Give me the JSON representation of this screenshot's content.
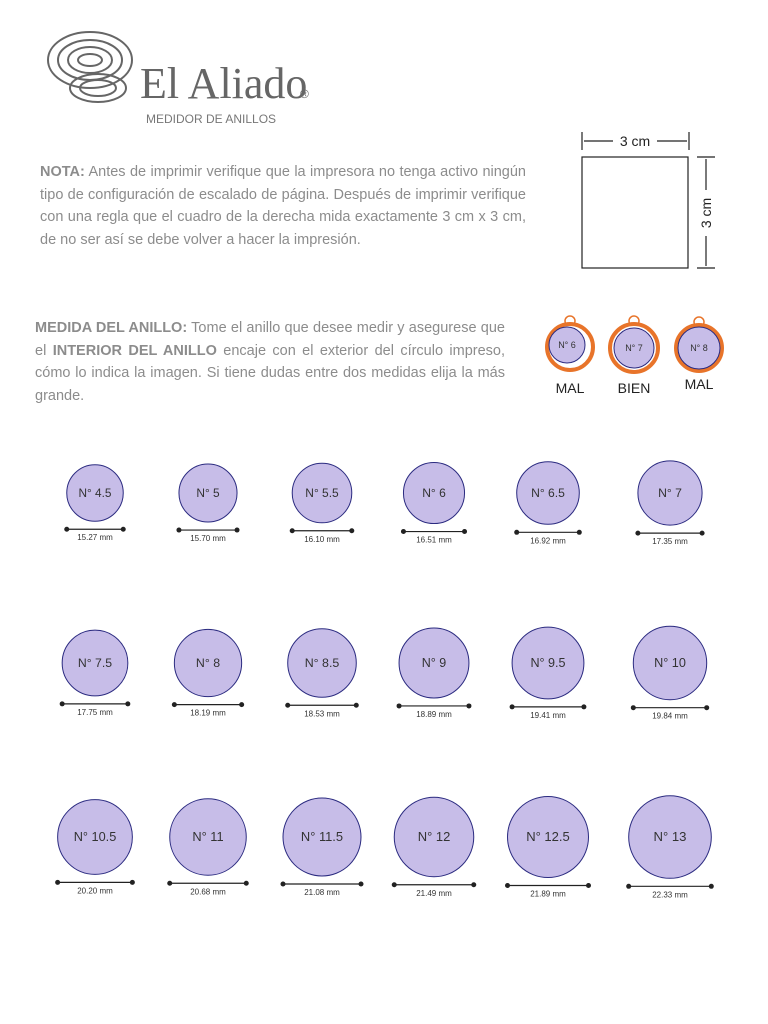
{
  "header": {
    "brand": "El Aliado",
    "registered": "®",
    "subtitle": "MEDIDOR DE ANILLOS"
  },
  "note": {
    "label": "NOTA:",
    "text": "Antes de imprimir  verifique que la impresora no tenga activo ningún  tipo  de configuración  de  escalado  de  página.  Después de imprimir verifique  con una regla que el cuadro de la derecha  mida exactamente  3 cm x 3 cm,  de no ser así se debe volver  a hacer  la impresión."
  },
  "square": {
    "width_label": "3 cm",
    "height_label": "3 cm"
  },
  "measure": {
    "label": "MEDIDA DEL ANILLO:",
    "text_before": "Tome el anillo que desee medir y asegurese que  el",
    "emphasis": "INTERIOR  DEL  ANILLO",
    "text_after": "encaje con el exterior del  círculo impreso, cómo lo indica la imagen. Si tiene dudas entre dos medidas elija la más grande."
  },
  "examples": [
    {
      "label": "N° 6",
      "verdict": "MAL"
    },
    {
      "label": "N° 7",
      "verdict": "BIEN"
    },
    {
      "label": "N° 8",
      "verdict": "MAL"
    }
  ],
  "rings": [
    {
      "label": "N° 4.5",
      "diameter_mm": 15.27,
      "diameter_label": "15.27 mm"
    },
    {
      "label": "N° 5",
      "diameter_mm": 15.7,
      "diameter_label": "15.70 mm"
    },
    {
      "label": "N° 5.5",
      "diameter_mm": 16.1,
      "diameter_label": "16.10 mm"
    },
    {
      "label": "N° 6",
      "diameter_mm": 16.51,
      "diameter_label": "16.51 mm"
    },
    {
      "label": "N° 6.5",
      "diameter_mm": 16.92,
      "diameter_label": "16.92 mm"
    },
    {
      "label": "N° 7",
      "diameter_mm": 17.35,
      "diameter_label": "17.35 mm"
    },
    {
      "label": "N° 7.5",
      "diameter_mm": 17.75,
      "diameter_label": "17.75 mm"
    },
    {
      "label": "N° 8",
      "diameter_mm": 18.19,
      "diameter_label": "18.19 mm"
    },
    {
      "label": "N° 8.5",
      "diameter_mm": 18.53,
      "diameter_label": "18.53 mm"
    },
    {
      "label": "N° 9",
      "diameter_mm": 18.89,
      "diameter_label": "18.89 mm"
    },
    {
      "label": "N° 9.5",
      "diameter_mm": 19.41,
      "diameter_label": "19.41 mm"
    },
    {
      "label": "N° 10",
      "diameter_mm": 19.84,
      "diameter_label": "19.84 mm"
    },
    {
      "label": "N° 10.5",
      "diameter_mm": 20.2,
      "diameter_label": "20.20 mm"
    },
    {
      "label": "N° 11",
      "diameter_mm": 20.68,
      "diameter_label": "20.68 mm"
    },
    {
      "label": "N° 11.5",
      "diameter_mm": 21.08,
      "diameter_label": "21.08 mm"
    },
    {
      "label": "N° 12",
      "diameter_mm": 21.49,
      "diameter_label": "21.49 mm"
    },
    {
      "label": "N° 12.5",
      "diameter_mm": 21.89,
      "diameter_label": "21.89 mm"
    },
    {
      "label": "N° 13",
      "diameter_mm": 22.33,
      "diameter_label": "22.33 mm"
    }
  ]
}
